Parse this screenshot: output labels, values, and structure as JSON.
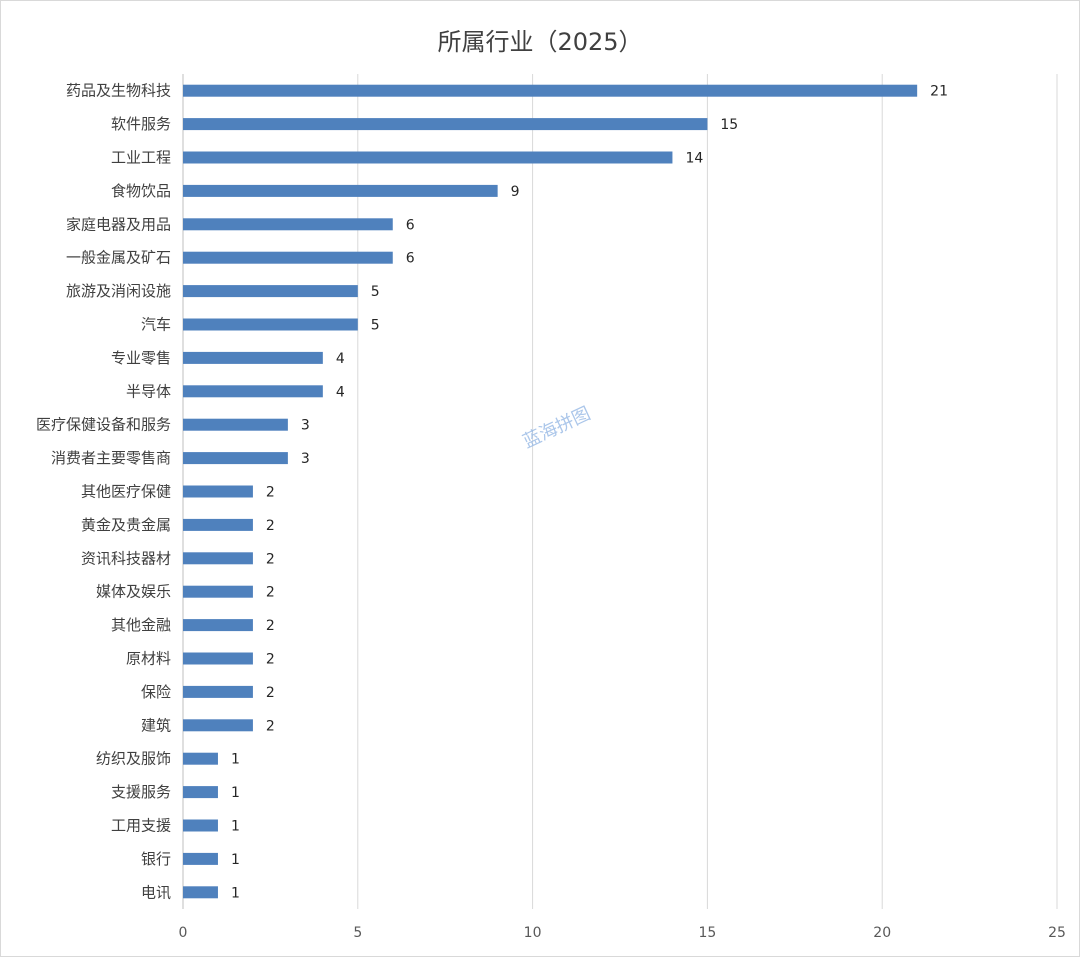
{
  "chart_data": {
    "type": "bar",
    "orientation": "horizontal",
    "title": "所属行业（2025）",
    "categories": [
      "药品及生物科技",
      "软件服务",
      "工业工程",
      "食物饮品",
      "家庭电器及用品",
      "一般金属及矿石",
      "旅游及消闲设施",
      "汽车",
      "专业零售",
      "半导体",
      "医疗保健设备和服务",
      "消费者主要零售商",
      "其他医疗保健",
      "黄金及贵金属",
      "资讯科技器材",
      "媒体及娱乐",
      "其他金融",
      "原材料",
      "保险",
      "建筑",
      "纺织及服饰",
      "支援服务",
      "工用支援",
      "银行",
      "电讯"
    ],
    "values": [
      21,
      15,
      14,
      9,
      6,
      6,
      5,
      5,
      4,
      4,
      3,
      3,
      2,
      2,
      2,
      2,
      2,
      2,
      2,
      2,
      1,
      1,
      1,
      1,
      1
    ],
    "xlim": [
      0,
      25
    ],
    "xticks": [
      0,
      5,
      10,
      15,
      20,
      25
    ],
    "grid": true,
    "bar_color": "#4f81bd"
  },
  "watermark": "蓝海拼图"
}
